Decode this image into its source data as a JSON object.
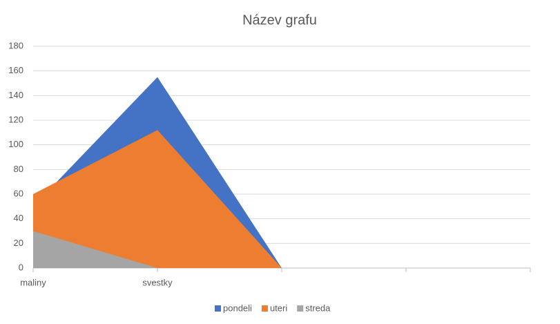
{
  "chart_data": {
    "type": "area",
    "title": "Název grafu",
    "categories": [
      "maliny",
      "svestky",
      null,
      null,
      null
    ],
    "series": [
      {
        "name": "pondeli",
        "color": "#4472c4",
        "values": [
          50,
          155,
          0,
          null,
          null
        ]
      },
      {
        "name": "uteri",
        "color": "#ed7d31",
        "values": [
          60,
          112,
          0,
          null,
          null
        ]
      },
      {
        "name": "streda",
        "color": "#a5a5a5",
        "values": [
          30,
          0,
          0,
          null,
          null
        ]
      }
    ],
    "ylim": [
      0,
      180
    ],
    "yticks": [
      0,
      20,
      40,
      60,
      80,
      100,
      120,
      140,
      160,
      180
    ],
    "grid": true,
    "legend": "bottom"
  }
}
